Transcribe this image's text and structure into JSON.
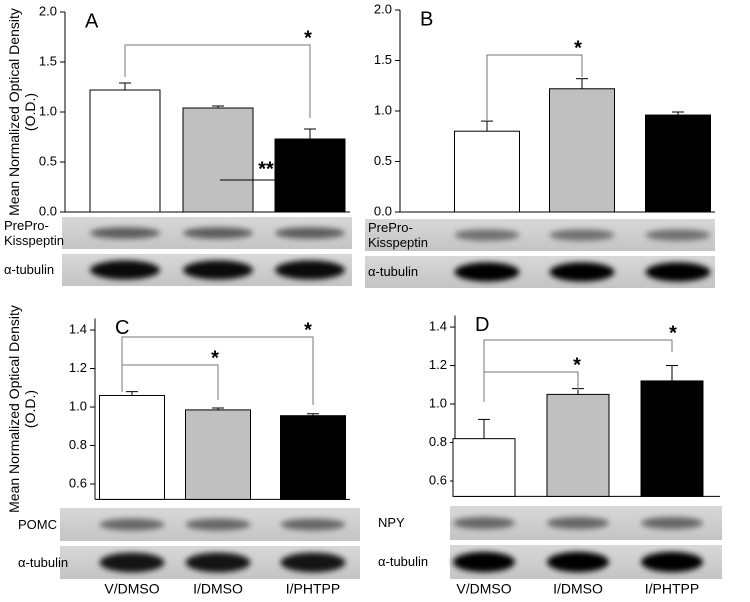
{
  "chart_data": [
    {
      "type": "bar",
      "panel_label": "A",
      "y_label": "Mean Normalized Optical Density (O.D.)",
      "categories": [
        null,
        null,
        null
      ],
      "values": [
        1.22,
        1.04,
        0.73
      ],
      "errors": [
        0.07,
        0.02,
        0.1
      ],
      "colors": [
        "#ffffff",
        "#c0c0c0",
        "#000000"
      ],
      "ylim": [
        0,
        2
      ],
      "yticks": [
        {
          "value": 0,
          "label": "0.0"
        },
        0.5,
        {
          "value": 1,
          "label": "1.0"
        },
        1.5,
        {
          "value": 2,
          "label": "2.0"
        }
      ],
      "blots": [
        "PrePro-Kisspeptin",
        "α-tubulin"
      ],
      "annotations": [
        "*",
        "**"
      ]
    },
    {
      "type": "bar",
      "panel_label": "B",
      "categories": [
        null,
        null,
        null
      ],
      "values": [
        0.8,
        1.22,
        0.96
      ],
      "errors": [
        0.1,
        0.1,
        0.03
      ],
      "colors": [
        "#ffffff",
        "#c0c0c0",
        "#000000"
      ],
      "ylim": [
        0,
        2
      ],
      "yticks": [
        {
          "value": 0,
          "label": "0.0"
        },
        0.5,
        {
          "value": 1,
          "label": "1.0"
        },
        1.5,
        {
          "value": 2,
          "label": "2.0"
        }
      ],
      "blots": [
        "PrePro-Kisspeptin",
        "α-tubulin"
      ],
      "annotations": [
        "*"
      ]
    },
    {
      "type": "bar",
      "panel_label": "C",
      "y_label": "Mean Normalized Optical Density (O.D.)",
      "categories": [
        "V/DMSO",
        "I/DMSO",
        "I/PHTPP"
      ],
      "values": [
        1.06,
        0.985,
        0.955
      ],
      "errors": [
        0.02,
        0.01,
        0.01
      ],
      "colors": [
        "#ffffff",
        "#c0c0c0",
        "#000000"
      ],
      "ylim": [
        0.52,
        1.46
      ],
      "yticks": [
        0.6,
        0.8,
        {
          "value": 1,
          "label": "1.0"
        },
        1.2,
        1.4
      ],
      "blots": [
        "POMC",
        "α-tubulin"
      ],
      "annotations": [
        "*",
        "*"
      ]
    },
    {
      "type": "bar",
      "panel_label": "D",
      "categories": [
        "V/DMSO",
        "I/DMSO",
        "I/PHTPP"
      ],
      "values": [
        0.82,
        1.05,
        1.12
      ],
      "errors": [
        0.1,
        0.03,
        0.08
      ],
      "colors": [
        "#ffffff",
        "#c0c0c0",
        "#000000"
      ],
      "ylim": [
        0.52,
        1.46
      ],
      "yticks": [
        0.6,
        0.8,
        {
          "value": 1,
          "label": "1.0"
        },
        1.2,
        1.4
      ],
      "blots": [
        "NPY",
        "α-tubulin"
      ],
      "annotations": [
        "*",
        "*"
      ]
    }
  ]
}
